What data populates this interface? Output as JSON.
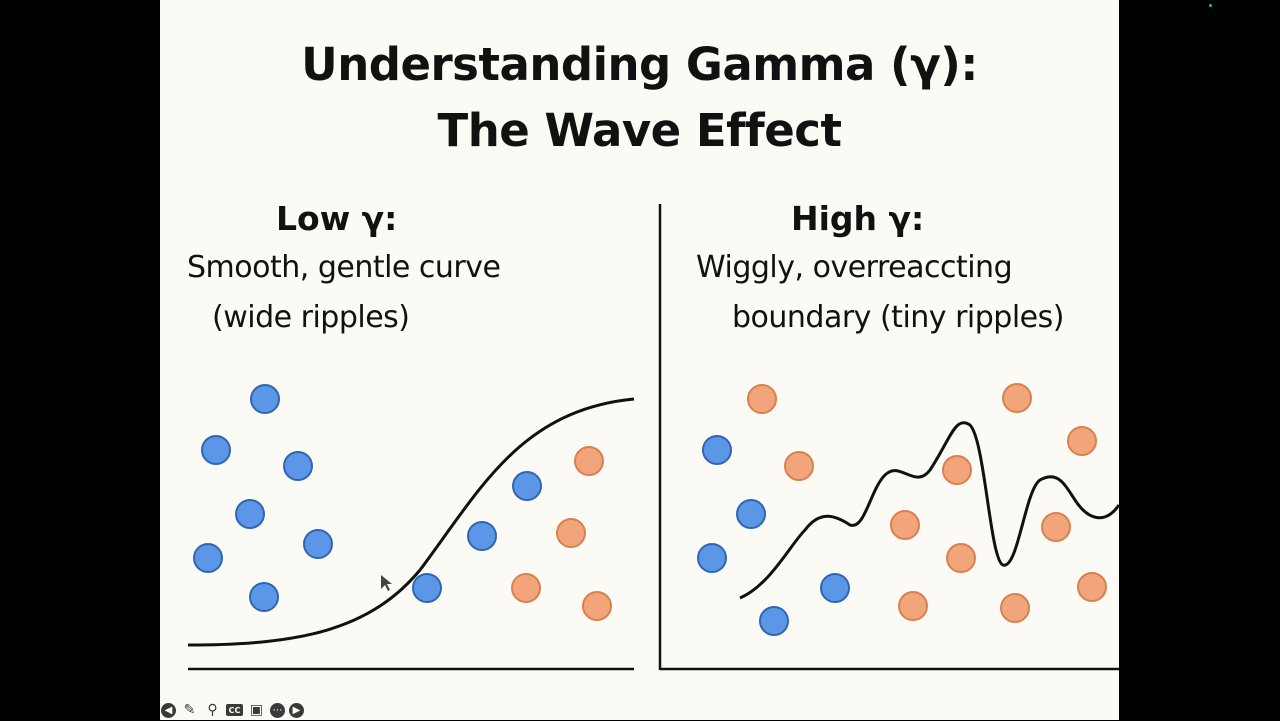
{
  "slide": {
    "title_line1": "Understanding Gamma (γ):",
    "title_line2": "The Wave Effect",
    "left_panel": {
      "heading": "Low γ:",
      "line1": "Smooth, gentle curve",
      "line2": "(wide ripples)"
    },
    "right_panel": {
      "heading": "High γ:",
      "line1": "Wiggly, overreaccting",
      "line2": "boundary (tiny ripples)"
    }
  },
  "colors": {
    "background": "#fbfaf5",
    "blue_point": "#5b97e6",
    "blue_stroke": "#2f66b4",
    "orange_point": "#f2a57a",
    "orange_stroke": "#d9804f",
    "curve": "#111111"
  },
  "toolbar": {
    "icons": [
      "arrow-left-icon",
      "pen-icon",
      "zoom-icon",
      "cc-icon",
      "camera-icon",
      "more-icon",
      "arrow-right-icon"
    ]
  }
}
